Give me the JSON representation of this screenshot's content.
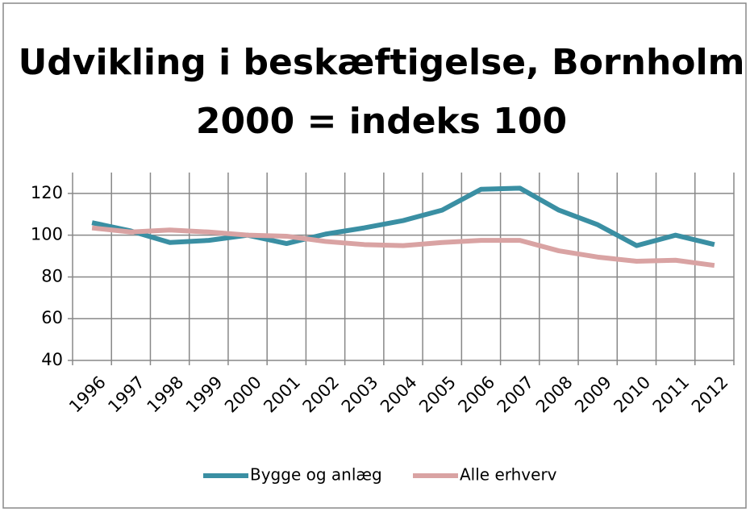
{
  "chart_data": {
    "type": "line",
    "title": "Udvikling i beskæftigelse, Bornholm",
    "subtitle": "2000 = indeks 100",
    "categories": [
      "1996",
      "1997",
      "1998",
      "1999",
      "2000",
      "2001",
      "2002",
      "2003",
      "2004",
      "2005",
      "2006",
      "2007",
      "2008",
      "2009",
      "2010",
      "2011",
      "2012"
    ],
    "series": [
      {
        "name": "Bygge og anlæg",
        "color": "#3a8fa3",
        "values": [
          106,
          102,
          96.5,
          97.5,
          100,
          96,
          100.5,
          103.5,
          107,
          112,
          122,
          122.5,
          112,
          105,
          95,
          100,
          95.5
        ]
      },
      {
        "name": "Alle erhverv",
        "color": "#d9a3a3",
        "values": [
          103.5,
          101.5,
          102.5,
          101.5,
          100,
          99.5,
          97,
          95.5,
          95,
          96.5,
          97.5,
          97.5,
          92.5,
          89.5,
          87.5,
          88,
          85.5
        ]
      }
    ],
    "ylim": [
      40,
      130
    ],
    "yticks": [
      40,
      60,
      80,
      100,
      120
    ],
    "grid": true,
    "legend": "bottom"
  }
}
